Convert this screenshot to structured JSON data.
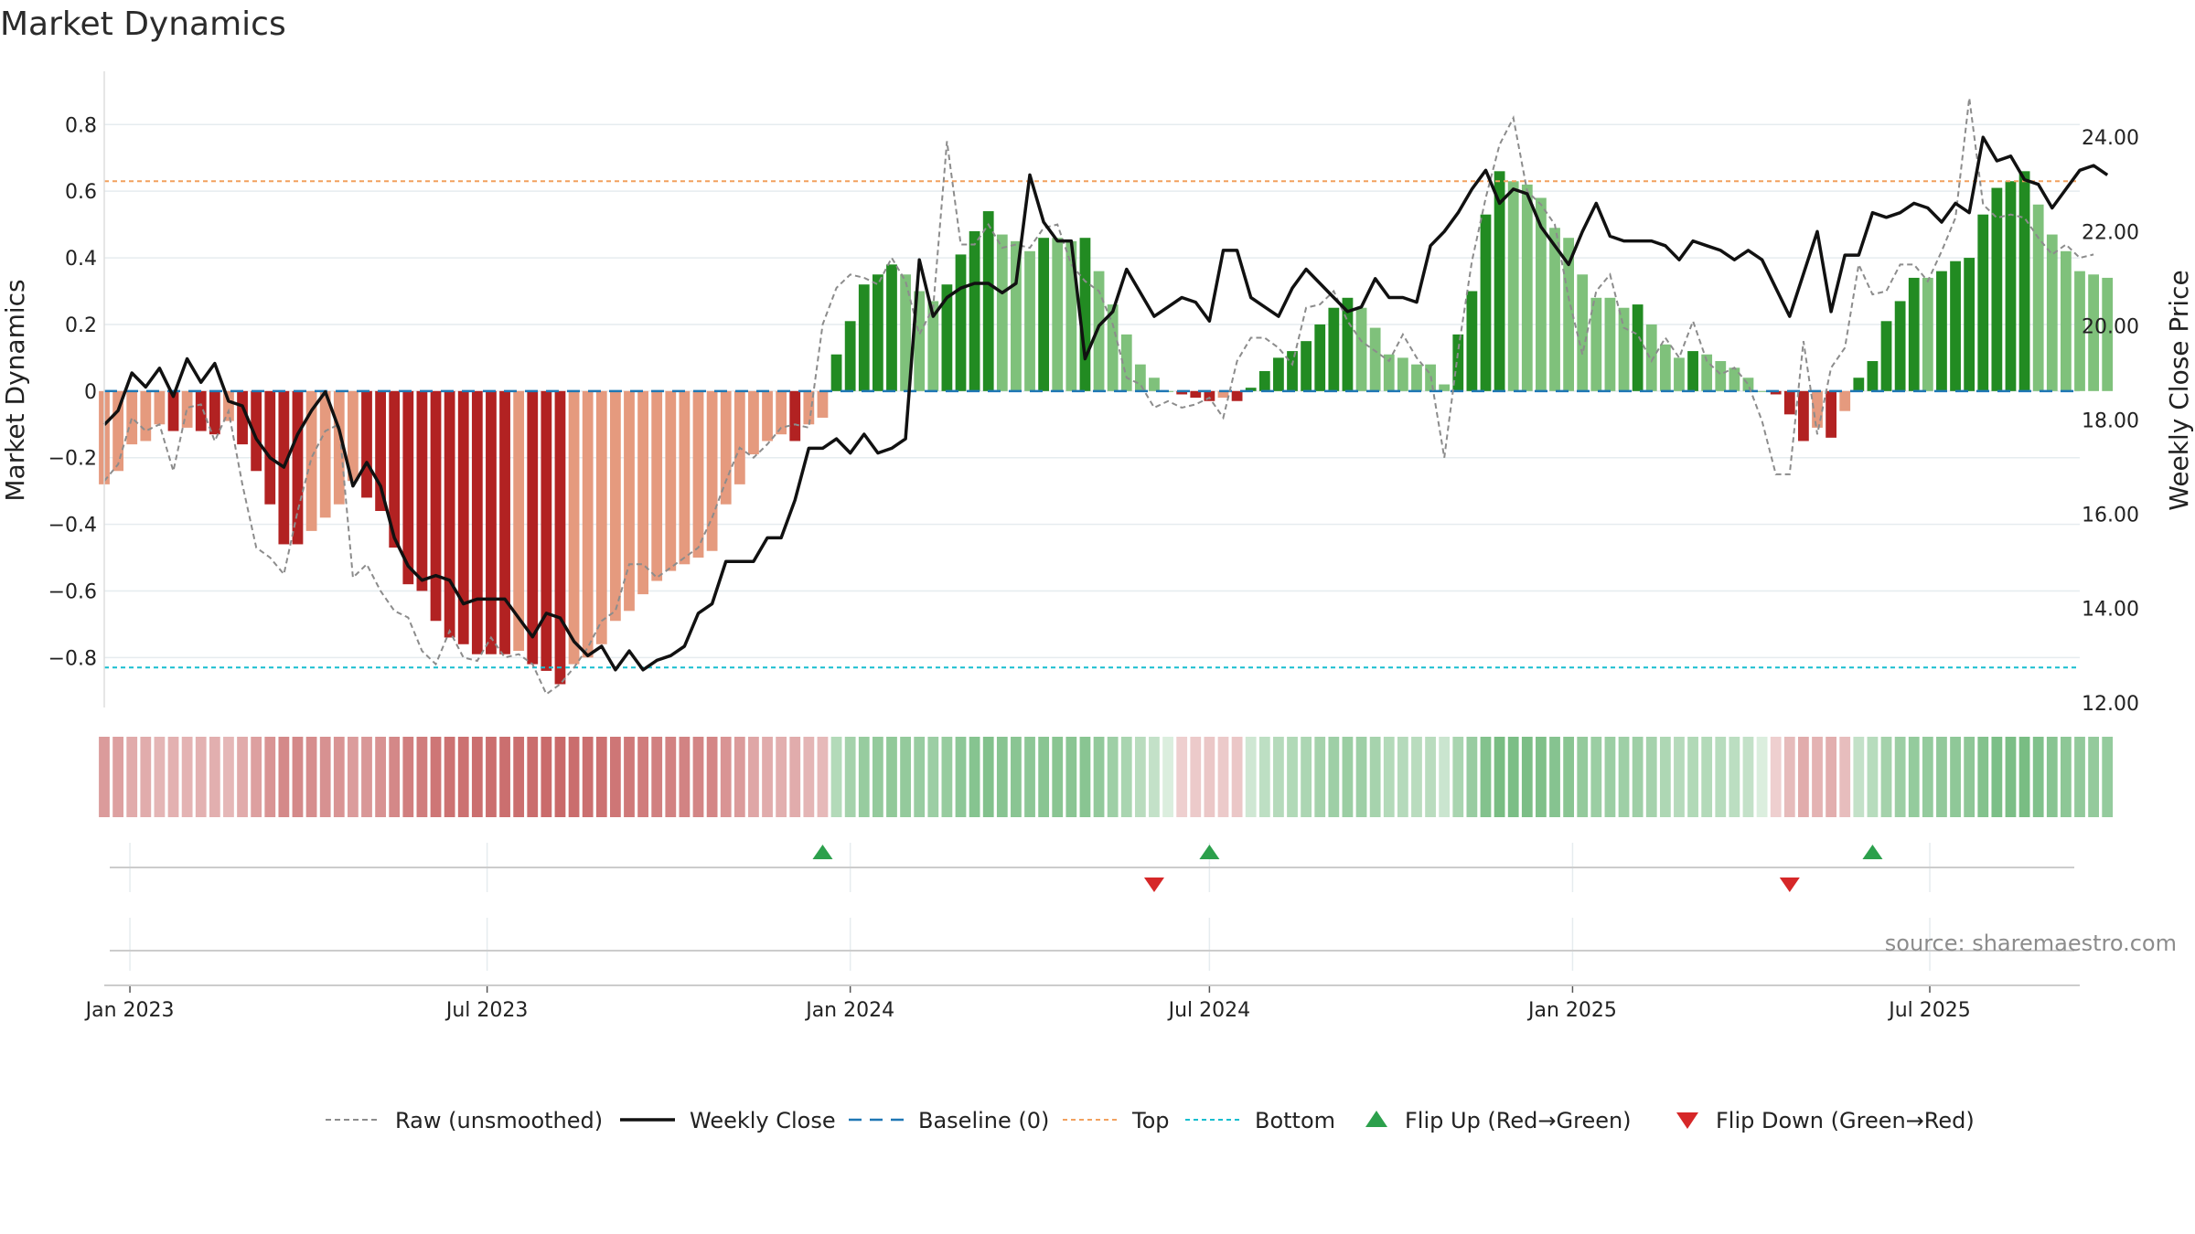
{
  "chart_data": {
    "type": "bar",
    "title": "Market Dynamics",
    "ylabel": "Market Dynamics",
    "y2label": "Weekly Close Price",
    "source": "source: sharemaestro.com",
    "ylim": [
      -0.95,
      0.96
    ],
    "y2lim": [
      11.9,
      25.4
    ],
    "ytick_values": [
      -0.8,
      -0.6,
      -0.4,
      -0.2,
      0,
      0.2,
      0.4,
      0.6,
      0.8
    ],
    "ytick_labels": [
      "−0.8",
      "−0.6",
      "−0.4",
      "−0.2",
      "0",
      "0.2",
      "0.4",
      "0.6",
      "0.8"
    ],
    "y2tick_values": [
      12,
      14,
      16,
      18,
      20,
      22,
      24
    ],
    "y2tick_labels": [
      "12.00",
      "14.00",
      "16.00",
      "18.00",
      "20.00",
      "22.00",
      "24.00"
    ],
    "xlim": [
      "2022-12-19",
      "2025-09-15"
    ],
    "xticks": [
      {
        "date": "2023-01-01",
        "label": "Jan 2023"
      },
      {
        "date": "2023-07-01",
        "label": "Jul 2023"
      },
      {
        "date": "2024-01-01",
        "label": "Jan 2024"
      },
      {
        "date": "2024-07-01",
        "label": "Jul 2024"
      },
      {
        "date": "2025-01-01",
        "label": "Jan 2025"
      },
      {
        "date": "2025-07-01",
        "label": "Jul 2025"
      }
    ],
    "x_start": "2022-12-19",
    "x_step_days": 7,
    "values": [
      -0.28,
      -0.24,
      -0.16,
      -0.15,
      -0.1,
      -0.12,
      -0.11,
      -0.12,
      -0.13,
      -0.09,
      -0.16,
      -0.24,
      -0.34,
      -0.46,
      -0.46,
      -0.42,
      -0.38,
      -0.34,
      -0.27,
      -0.32,
      -0.36,
      -0.47,
      -0.58,
      -0.6,
      -0.69,
      -0.74,
      -0.76,
      -0.79,
      -0.79,
      -0.79,
      -0.78,
      -0.82,
      -0.84,
      -0.88,
      -0.82,
      -0.8,
      -0.76,
      -0.69,
      -0.66,
      -0.61,
      -0.57,
      -0.54,
      -0.52,
      -0.5,
      -0.48,
      -0.34,
      -0.28,
      -0.19,
      -0.15,
      -0.13,
      -0.15,
      -0.1,
      -0.08,
      0.11,
      0.21,
      0.32,
      0.35,
      0.38,
      0.35,
      0.3,
      0.27,
      0.32,
      0.41,
      0.48,
      0.54,
      0.47,
      0.45,
      0.42,
      0.46,
      0.46,
      0.45,
      0.46,
      0.36,
      0.26,
      0.17,
      0.08,
      0.04,
      0.0,
      -0.01,
      -0.02,
      -0.03,
      -0.02,
      -0.03,
      0.01,
      0.06,
      0.1,
      0.12,
      0.15,
      0.2,
      0.25,
      0.28,
      0.25,
      0.19,
      0.11,
      0.1,
      0.08,
      0.08,
      0.02,
      0.17,
      0.3,
      0.53,
      0.66,
      0.63,
      0.62,
      0.58,
      0.49,
      0.46,
      0.35,
      0.28,
      0.28,
      0.25,
      0.26,
      0.2,
      0.14,
      0.1,
      0.12,
      0.11,
      0.09,
      0.07,
      0.04,
      0.0,
      -0.01,
      -0.07,
      -0.15,
      -0.11,
      -0.14,
      -0.06,
      0.04,
      0.09,
      0.21,
      0.27,
      0.34,
      0.34,
      0.36,
      0.39,
      0.4,
      0.53,
      0.61,
      0.63,
      0.66,
      0.56,
      0.47,
      0.42,
      0.36,
      0.35,
      0.34
    ],
    "raw": [
      -0.27,
      -0.22,
      -0.08,
      -0.12,
      -0.1,
      -0.24,
      -0.05,
      -0.04,
      -0.15,
      -0.06,
      -0.28,
      -0.47,
      -0.5,
      -0.55,
      -0.36,
      -0.2,
      -0.12,
      -0.1,
      -0.56,
      -0.52,
      -0.6,
      -0.66,
      -0.68,
      -0.78,
      -0.82,
      -0.72,
      -0.8,
      -0.81,
      -0.74,
      -0.8,
      -0.79,
      -0.82,
      -0.91,
      -0.88,
      -0.83,
      -0.77,
      -0.69,
      -0.66,
      -0.52,
      -0.52,
      -0.56,
      -0.53,
      -0.5,
      -0.47,
      -0.38,
      -0.27,
      -0.17,
      -0.2,
      -0.16,
      -0.11,
      -0.1,
      -0.11,
      0.2,
      0.31,
      0.35,
      0.34,
      0.32,
      0.4,
      0.33,
      0.17,
      0.25,
      0.75,
      0.44,
      0.44,
      0.5,
      0.43,
      0.44,
      0.43,
      0.49,
      0.5,
      0.38,
      0.33,
      0.3,
      0.2,
      0.04,
      0.02,
      -0.05,
      -0.03,
      -0.05,
      -0.04,
      -0.02,
      -0.08,
      0.09,
      0.16,
      0.16,
      0.13,
      0.08,
      0.25,
      0.26,
      0.3,
      0.21,
      0.15,
      0.12,
      0.09,
      0.17,
      0.1,
      0.05,
      -0.2,
      0.12,
      0.39,
      0.58,
      0.74,
      0.82,
      0.6,
      0.56,
      0.5,
      0.28,
      0.11,
      0.3,
      0.35,
      0.19,
      0.17,
      0.09,
      0.16,
      0.1,
      0.21,
      0.09,
      0.05,
      0.07,
      0.02,
      -0.09,
      -0.25,
      -0.25,
      0.15,
      -0.13,
      0.07,
      0.13,
      0.38,
      0.29,
      0.3,
      0.38,
      0.38,
      0.33,
      0.42,
      0.52,
      0.88,
      0.56,
      0.52,
      0.53,
      0.52,
      0.46,
      0.41,
      0.44,
      0.4,
      0.41
    ],
    "weekly_close": [
      17.9,
      18.2,
      19.0,
      18.7,
      19.1,
      18.5,
      19.3,
      18.8,
      19.2,
      18.4,
      18.3,
      17.6,
      17.2,
      17.0,
      17.7,
      18.2,
      18.6,
      17.8,
      16.6,
      17.1,
      16.6,
      15.5,
      14.9,
      14.6,
      14.7,
      14.6,
      14.1,
      14.2,
      14.2,
      14.2,
      13.8,
      13.4,
      13.9,
      13.8,
      13.3,
      13.0,
      13.2,
      12.7,
      13.1,
      12.7,
      12.9,
      13.0,
      13.2,
      13.9,
      14.1,
      15.0,
      15.0,
      15.0,
      15.5,
      15.5,
      16.3,
      17.4,
      17.4,
      17.6,
      17.3,
      17.7,
      17.3,
      17.4,
      17.6,
      21.4,
      20.2,
      20.6,
      20.8,
      20.9,
      20.9,
      20.7,
      20.9,
      23.2,
      22.2,
      21.8,
      21.8,
      19.3,
      20.0,
      20.3,
      21.2,
      20.7,
      20.2,
      20.4,
      20.6,
      20.5,
      20.1,
      21.6,
      21.6,
      20.6,
      20.4,
      20.2,
      20.8,
      21.2,
      20.9,
      20.6,
      20.3,
      20.4,
      21.0,
      20.6,
      20.6,
      20.5,
      21.7,
      22.0,
      22.4,
      22.9,
      23.3,
      22.6,
      22.9,
      22.8,
      22.1,
      21.7,
      21.3,
      22.0,
      22.6,
      21.9,
      21.8,
      21.8,
      21.8,
      21.7,
      21.4,
      21.8,
      21.7,
      21.6,
      21.4,
      21.6,
      21.4,
      20.8,
      20.2,
      21.1,
      22.0,
      20.3,
      21.5,
      21.5,
      22.4,
      22.3,
      22.4,
      22.6,
      22.5,
      22.2,
      22.6,
      22.4,
      24.0,
      23.5,
      23.6,
      23.1,
      23.0,
      22.5,
      22.9,
      23.3,
      23.4,
      23.2
    ],
    "top_line": 0.63,
    "bottom_line": -0.83,
    "baseline": 0,
    "flips_up": [
      "2023-12-18",
      "2024-07-01",
      "2025-06-02"
    ],
    "flips_down": [
      "2024-06-03",
      "2025-04-21"
    ],
    "legend": [
      {
        "key": "raw",
        "label": "Raw (unsmoothed)"
      },
      {
        "key": "close",
        "label": "Weekly Close"
      },
      {
        "key": "baseline",
        "label": "Baseline (0)"
      },
      {
        "key": "top",
        "label": "Top"
      },
      {
        "key": "bottom",
        "label": "Bottom"
      },
      {
        "key": "flip_up",
        "label": "Flip Up (Red→Green)"
      },
      {
        "key": "flip_down",
        "label": "Flip Down (Green→Red)"
      }
    ],
    "legend_position": "bottom",
    "grid": true
  },
  "colors": {
    "strong_green": "#228b22",
    "light_green": "#7fc17b",
    "strong_red": "#b22222",
    "light_red": "#e59a7e",
    "raw_line": "#8c8c8c",
    "close_line": "#111111",
    "baseline": "#1f77b4",
    "top": "#f2a15f",
    "bottom": "#17becf",
    "flip_up": "#2ca04c",
    "flip_down": "#d62728",
    "grid": "#e6ecef"
  }
}
